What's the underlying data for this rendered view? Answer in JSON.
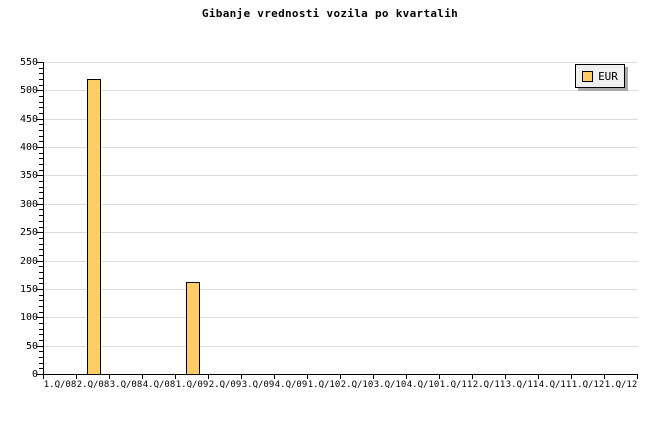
{
  "chart_data": {
    "type": "bar",
    "title": "Gibanje vrednosti vozila po kvartalih",
    "categories": [
      "1.Q/08",
      "2.Q/08",
      "3.Q/08",
      "4.Q/08",
      "1.Q/09",
      "2.Q/09",
      "3.Q/09",
      "4.Q/09",
      "1.Q/10",
      "2.Q/10",
      "3.Q/10",
      "4.Q/10",
      "1.Q/11",
      "2.Q/11",
      "3.Q/11",
      "4.Q/11",
      "1.Q/12",
      "1.Q/12"
    ],
    "series": [
      {
        "name": "EUR",
        "color": "#FFCC66",
        "values": [
          null,
          520,
          null,
          null,
          163,
          null,
          null,
          null,
          null,
          null,
          null,
          null,
          null,
          null,
          null,
          null,
          null,
          null
        ]
      }
    ],
    "xlabel": "",
    "ylabel": "",
    "ylim": [
      0,
      550
    ],
    "ytick_step": 50,
    "ytick_labels": [
      "0",
      "50",
      "100",
      "150",
      "200",
      "250",
      "300",
      "350",
      "400",
      "450",
      "500",
      "550"
    ],
    "y_minor_tick_step": 10,
    "grid": "horizontal-major",
    "legend_position": "top-right",
    "legend_items": [
      {
        "label": "EUR",
        "swatch_color": "#FFCC66"
      }
    ]
  },
  "colors": {
    "background": "#FFFFFF",
    "bar_fill": "#FFCC66",
    "bar_border": "#000000",
    "gridline": "#DCDCDC",
    "axis": "#000000",
    "text": "#000000",
    "legend_bg": "#EFEFEF",
    "legend_border": "#000000",
    "legend_shadow": "#AAAAAA"
  }
}
